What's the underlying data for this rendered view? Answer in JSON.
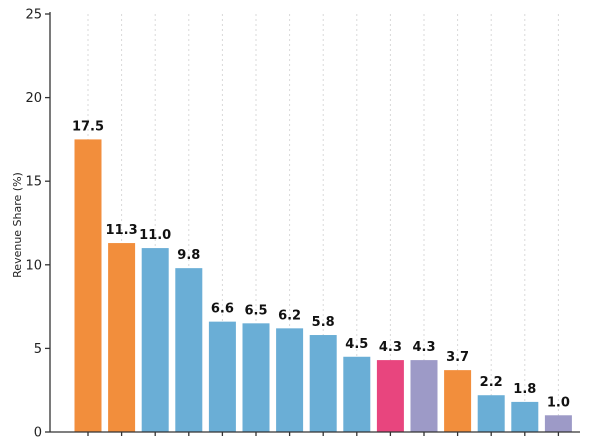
{
  "chart_data": {
    "type": "bar",
    "title": "",
    "xlabel": "",
    "ylabel": "Revenue Share (%)",
    "ylim": [
      0,
      25
    ],
    "yticks": [
      0,
      5,
      10,
      15,
      20,
      25
    ],
    "grid": "vertical",
    "legend": "none",
    "values": [
      17.5,
      11.3,
      11.0,
      9.8,
      6.6,
      6.5,
      6.2,
      5.8,
      4.5,
      4.3,
      4.3,
      3.7,
      2.2,
      1.8,
      1.0
    ],
    "data_labels": [
      "17.5",
      "11.3",
      "11.0",
      "9.8",
      "6.6",
      "6.5",
      "6.2",
      "5.8",
      "4.5",
      "4.3",
      "4.3",
      "3.7",
      "2.2",
      "1.8",
      "1.0"
    ],
    "colors": [
      "#f28e3c",
      "#f28e3c",
      "#6aaed6",
      "#6aaed6",
      "#6aaed6",
      "#6aaed6",
      "#6aaed6",
      "#6aaed6",
      "#6aaed6",
      "#e8457e",
      "#9d9ac7",
      "#f28e3c",
      "#6aaed6",
      "#6aaed6",
      "#9d9ac7"
    ]
  }
}
